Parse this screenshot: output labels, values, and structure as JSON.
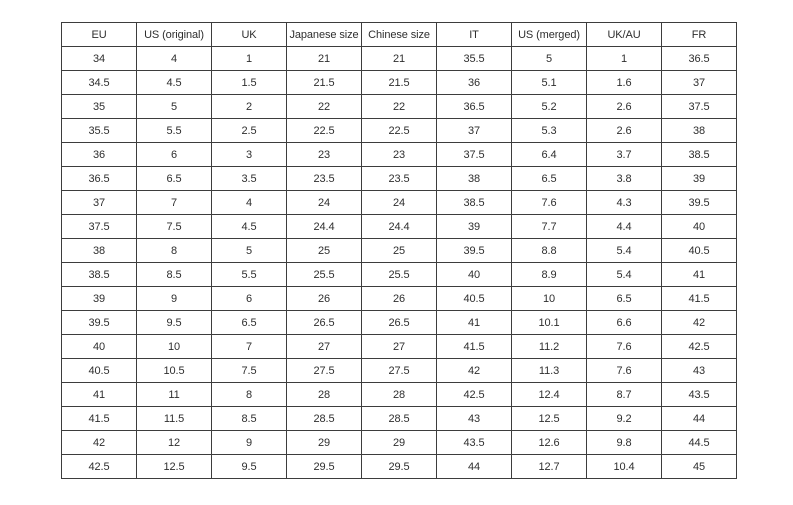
{
  "chart_data": {
    "type": "table",
    "title": "",
    "columns": [
      "EU",
      "US (original)",
      "UK",
      "Japanese size",
      "Chinese size",
      "IT",
      "US (merged)",
      "UK/AU",
      "FR"
    ],
    "rows": [
      [
        "34",
        "4",
        "1",
        "21",
        "21",
        "35.5",
        "5",
        "1",
        "36.5"
      ],
      [
        "34.5",
        "4.5",
        "1.5",
        "21.5",
        "21.5",
        "36",
        "5.1",
        "1.6",
        "37"
      ],
      [
        "35",
        "5",
        "2",
        "22",
        "22",
        "36.5",
        "5.2",
        "2.6",
        "37.5"
      ],
      [
        "35.5",
        "5.5",
        "2.5",
        "22.5",
        "22.5",
        "37",
        "5.3",
        "2.6",
        "38"
      ],
      [
        "36",
        "6",
        "3",
        "23",
        "23",
        "37.5",
        "6.4",
        "3.7",
        "38.5"
      ],
      [
        "36.5",
        "6.5",
        "3.5",
        "23.5",
        "23.5",
        "38",
        "6.5",
        "3.8",
        "39"
      ],
      [
        "37",
        "7",
        "4",
        "24",
        "24",
        "38.5",
        "7.6",
        "4.3",
        "39.5"
      ],
      [
        "37.5",
        "7.5",
        "4.5",
        "24.4",
        "24.4",
        "39",
        "7.7",
        "4.4",
        "40"
      ],
      [
        "38",
        "8",
        "5",
        "25",
        "25",
        "39.5",
        "8.8",
        "5.4",
        "40.5"
      ],
      [
        "38.5",
        "8.5",
        "5.5",
        "25.5",
        "25.5",
        "40",
        "8.9",
        "5.4",
        "41"
      ],
      [
        "39",
        "9",
        "6",
        "26",
        "26",
        "40.5",
        "10",
        "6.5",
        "41.5"
      ],
      [
        "39.5",
        "9.5",
        "6.5",
        "26.5",
        "26.5",
        "41",
        "10.1",
        "6.6",
        "42"
      ],
      [
        "40",
        "10",
        "7",
        "27",
        "27",
        "41.5",
        "11.2",
        "7.6",
        "42.5"
      ],
      [
        "40.5",
        "10.5",
        "7.5",
        "27.5",
        "27.5",
        "42",
        "11.3",
        "7.6",
        "43"
      ],
      [
        "41",
        "11",
        "8",
        "28",
        "28",
        "42.5",
        "12.4",
        "8.7",
        "43.5"
      ],
      [
        "41.5",
        "11.5",
        "8.5",
        "28.5",
        "28.5",
        "43",
        "12.5",
        "9.2",
        "44"
      ],
      [
        "42",
        "12",
        "9",
        "29",
        "29",
        "43.5",
        "12.6",
        "9.8",
        "44.5"
      ],
      [
        "42.5",
        "12.5",
        "9.5",
        "29.5",
        "29.5",
        "44",
        "12.7",
        "10.4",
        "45"
      ]
    ],
    "layout_hints": {
      "grid": true,
      "header_row": true,
      "text_align": "center",
      "column_count": 9,
      "data_row_count": 18
    }
  },
  "colors": {
    "background": "#ffffff",
    "border": "#3d3d3d",
    "text": "#2e2e2e"
  }
}
